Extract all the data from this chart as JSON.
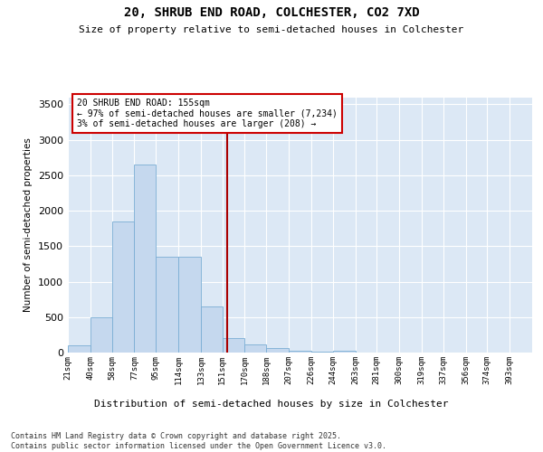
{
  "title": "20, SHRUB END ROAD, COLCHESTER, CO2 7XD",
  "subtitle": "Size of property relative to semi-detached houses in Colchester",
  "xlabel": "Distribution of semi-detached houses by size in Colchester",
  "ylabel": "Number of semi-detached properties",
  "bin_lefts": [
    21,
    40,
    58,
    77,
    95,
    114,
    133,
    151,
    170,
    188,
    207,
    226,
    244,
    263,
    281,
    300,
    319,
    337,
    356,
    374,
    393
  ],
  "counts": [
    100,
    500,
    1850,
    2650,
    1350,
    1350,
    650,
    200,
    120,
    65,
    30,
    10,
    20,
    5,
    2,
    0,
    0,
    0,
    0,
    0,
    0
  ],
  "bar_color": "#c5d8ee",
  "bar_edge_color": "#7aadd4",
  "vline_x": 155,
  "vline_color": "#aa0000",
  "annotation_text": "20 SHRUB END ROAD: 155sqm\n← 97% of semi-detached houses are smaller (7,234)\n3% of semi-detached houses are larger (208) →",
  "ylim": [
    0,
    3600
  ],
  "yticks": [
    0,
    500,
    1000,
    1500,
    2000,
    2500,
    3000,
    3500
  ],
  "background_color": "#dce8f5",
  "grid_color": "#ffffff",
  "footer_line1": "Contains HM Land Registry data © Crown copyright and database right 2025.",
  "footer_line2": "Contains public sector information licensed under the Open Government Licence v3.0."
}
